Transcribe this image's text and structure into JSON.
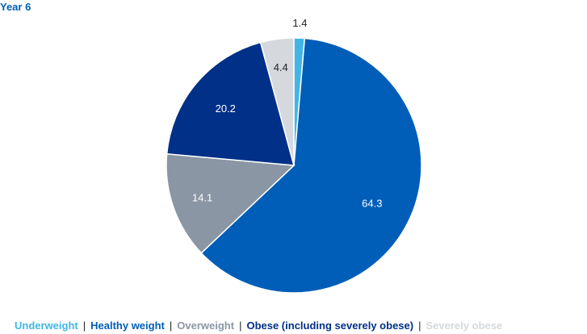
{
  "chart_data": {
    "type": "pie",
    "title": "Year 6",
    "categories": [
      "Underweight",
      "Healthy weight",
      "Overweight",
      "Obese (including severely obese)",
      "Severely obese"
    ],
    "values": [
      1.4,
      64.3,
      14.1,
      20.2,
      4.4
    ],
    "data_labels": [
      "1.4",
      "64.3",
      "14.1",
      "20.2",
      "4.4"
    ],
    "colors": [
      "#41b6e6",
      "#005eb8",
      "#8a96a3",
      "#003087",
      "#d5d9dd"
    ],
    "label_colors": [
      "#222222",
      "#ffffff",
      "#ffffff",
      "#ffffff",
      "#222222"
    ],
    "legend_colors": [
      "#41b6e6",
      "#005eb8",
      "#8a96a3",
      "#003087",
      "#d5d9dd"
    ],
    "legend_placement": "bottom",
    "start_angle_deg": 0,
    "direction": "clockwise"
  },
  "legend": {
    "separator": "|"
  }
}
